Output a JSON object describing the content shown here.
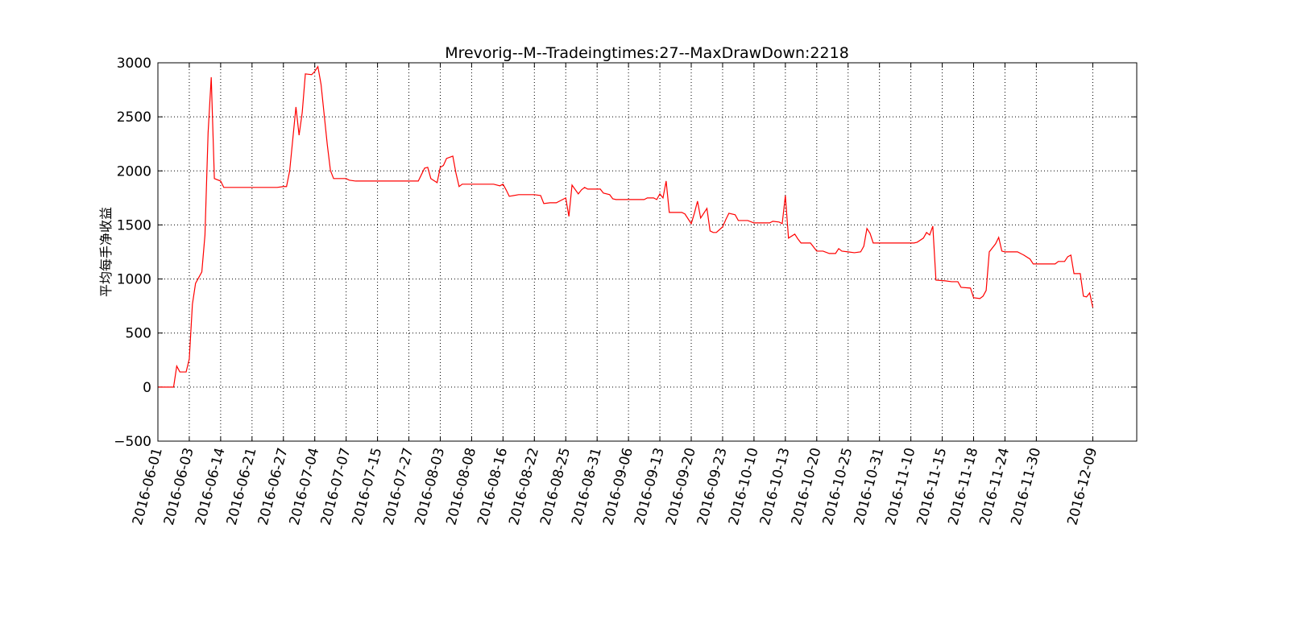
{
  "chart_data": {
    "type": "line",
    "title": "Mrevorig--M--Tradeingtimes:27--MaxDrawDown:2218",
    "y_label": "平均每手净收益",
    "grid": true,
    "xlim": [
      0,
      312
    ],
    "ylim": [
      -500,
      3000
    ],
    "yticks": [
      {
        "value": -500,
        "label": "−500"
      },
      0,
      500,
      1000,
      1500,
      2000,
      2500,
      3000
    ],
    "xticks": [
      {
        "value": 0,
        "label": "2016-06-01"
      },
      {
        "value": 10,
        "label": "2016-06-03"
      },
      {
        "value": 20,
        "label": "2016-06-14"
      },
      {
        "value": 30,
        "label": "2016-06-21"
      },
      {
        "value": 40,
        "label": "2016-06-27"
      },
      {
        "value": 50,
        "label": "2016-07-04"
      },
      {
        "value": 60,
        "label": "2016-07-07"
      },
      {
        "value": 70,
        "label": "2016-07-15"
      },
      {
        "value": 80,
        "label": "2016-07-27"
      },
      {
        "value": 90,
        "label": "2016-08-03"
      },
      {
        "value": 100,
        "label": "2016-08-08"
      },
      {
        "value": 110,
        "label": "2016-08-16"
      },
      {
        "value": 120,
        "label": "2016-08-22"
      },
      {
        "value": 130,
        "label": "2016-08-25"
      },
      {
        "value": 140,
        "label": "2016-08-31"
      },
      {
        "value": 150,
        "label": "2016-09-06"
      },
      {
        "value": 160,
        "label": "2016-09-13"
      },
      {
        "value": 170,
        "label": "2016-09-20"
      },
      {
        "value": 180,
        "label": "2016-09-23"
      },
      {
        "value": 190,
        "label": "2016-10-10"
      },
      {
        "value": 200,
        "label": "2016-10-13"
      },
      {
        "value": 210,
        "label": "2016-10-20"
      },
      {
        "value": 220,
        "label": "2016-10-25"
      },
      {
        "value": 230,
        "label": "2016-10-31"
      },
      {
        "value": 240,
        "label": "2016-11-10"
      },
      {
        "value": 250,
        "label": "2016-11-15"
      },
      {
        "value": 260,
        "label": "2016-11-18"
      },
      {
        "value": 270,
        "label": "2016-11-24"
      },
      {
        "value": 280,
        "label": "2016-11-30"
      },
      {
        "value": 298,
        "label": "2016-12-09"
      }
    ],
    "x": [
      0,
      5,
      6,
      7,
      9,
      10,
      11,
      12,
      14,
      15,
      16,
      17,
      18,
      20,
      21,
      30,
      38,
      40,
      41,
      42,
      44,
      45,
      46,
      47,
      49,
      50,
      51,
      52,
      54,
      55,
      56,
      60,
      61,
      63,
      83,
      85,
      86,
      87,
      89,
      90,
      91,
      92,
      94,
      95,
      96,
      97,
      107,
      109,
      110,
      111,
      112,
      115,
      120,
      122,
      123,
      125,
      127,
      129,
      130,
      131,
      132,
      134,
      135,
      136,
      137,
      141,
      142,
      144,
      145,
      146,
      155,
      156,
      158,
      159,
      160,
      161,
      162,
      163,
      167,
      168,
      170,
      171,
      172,
      173,
      175,
      176,
      177,
      178,
      180,
      181,
      182,
      184,
      185,
      188,
      190,
      195,
      196,
      198,
      199,
      200,
      201,
      203,
      204,
      205,
      208,
      210,
      212,
      214,
      216,
      217,
      218,
      220,
      222,
      224,
      225,
      226,
      227,
      228,
      241,
      242,
      244,
      245,
      246,
      247,
      248,
      251,
      253,
      255,
      256,
      259,
      260,
      262,
      263,
      264,
      265,
      267,
      268,
      269,
      270,
      274,
      276,
      278,
      279,
      286,
      287,
      289,
      290,
      291,
      292,
      294,
      295,
      296,
      297,
      298
    ],
    "series": [
      {
        "color": "#ff0000",
        "values": [
          0,
          0,
          194,
          140,
          140,
          260,
          767,
          960,
          1065,
          1407,
          2353,
          2867,
          1929,
          1906,
          1847,
          1847,
          1847,
          1855,
          1855,
          2000,
          2591,
          2330,
          2540,
          2897,
          2890,
          2920,
          2965,
          2800,
          2240,
          2003,
          1929,
          1929,
          1914,
          1906,
          1906,
          2025,
          2033,
          1929,
          1891,
          2033,
          2050,
          2115,
          2137,
          1980,
          1855,
          1877,
          1877,
          1862,
          1877,
          1824,
          1765,
          1780,
          1780,
          1772,
          1698,
          1705,
          1705,
          1735,
          1750,
          1579,
          1869,
          1787,
          1824,
          1847,
          1832,
          1832,
          1795,
          1780,
          1742,
          1735,
          1735,
          1750,
          1750,
          1735,
          1787,
          1750,
          1906,
          1616,
          1616,
          1601,
          1512,
          1608,
          1720,
          1564,
          1653,
          1445,
          1430,
          1430,
          1482,
          1549,
          1608,
          1594,
          1541,
          1541,
          1519,
          1519,
          1534,
          1527,
          1512,
          1772,
          1378,
          1415,
          1370,
          1333,
          1333,
          1258,
          1258,
          1236,
          1236,
          1281,
          1258,
          1251,
          1243,
          1251,
          1303,
          1467,
          1422,
          1333,
          1333,
          1340,
          1378,
          1430,
          1407,
          1489,
          990,
          983,
          975,
          975,
          923,
          916,
          827,
          819,
          841,
          894,
          1251,
          1325,
          1385,
          1258,
          1251,
          1251,
          1221,
          1184,
          1139,
          1139,
          1162,
          1162,
          1206,
          1221,
          1050,
          1050,
          841,
          834,
          871,
          737
        ]
      }
    ]
  }
}
